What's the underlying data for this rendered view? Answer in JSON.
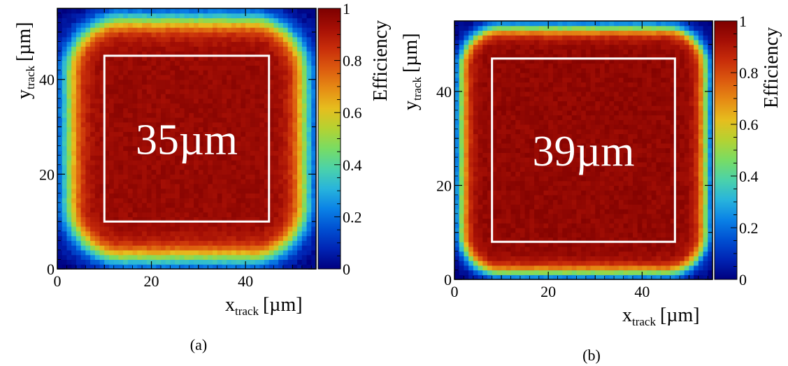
{
  "figure": {
    "panels": [
      {
        "caption": "(a)",
        "annotation": "35µm",
        "xlabel": "x",
        "xlabel_sub": "track",
        "xunit": "[µm]",
        "ylabel": "y",
        "ylabel_sub": "track",
        "yunit": "[µm]",
        "colorbar_label": "Efficiency"
      },
      {
        "caption": "(b)",
        "annotation": "39µm",
        "xlabel": "x",
        "xlabel_sub": "track",
        "xunit": "[µm]",
        "ylabel": "y",
        "ylabel_sub": "track",
        "yunit": "[µm]",
        "colorbar_label": "Efficiency"
      }
    ]
  },
  "chart_data": [
    {
      "type": "heatmap",
      "title": "",
      "xlabel": "x_track [µm]",
      "ylabel": "y_track [µm]",
      "xlim": [
        0,
        55
      ],
      "ylim": [
        0,
        55
      ],
      "x_ticks": [
        0,
        20,
        40
      ],
      "y_ticks": [
        0,
        20,
        40
      ],
      "colorbar": {
        "label": "Efficiency",
        "range": [
          0,
          1
        ],
        "ticks": [
          0,
          0.2,
          0.4,
          0.6,
          0.8,
          1
        ]
      },
      "pitch_um": 55,
      "bins": 55,
      "fiducial_square": {
        "x": [
          10,
          45
        ],
        "y": [
          10,
          45
        ],
        "label": "35µm"
      },
      "efficiency_model": {
        "plateau": 0.95,
        "corner_radius_um": 14,
        "edge_width_um": 4
      }
    },
    {
      "type": "heatmap",
      "title": "",
      "xlabel": "x_track [µm]",
      "ylabel": "y_track [µm]",
      "xlim": [
        0,
        55
      ],
      "ylim": [
        0,
        55
      ],
      "x_ticks": [
        0,
        20,
        40
      ],
      "y_ticks": [
        0,
        20,
        40
      ],
      "colorbar": {
        "label": "Efficiency",
        "range": [
          0,
          1
        ],
        "ticks": [
          0,
          0.2,
          0.4,
          0.6,
          0.8,
          1
        ]
      },
      "pitch_um": 55,
      "bins": 55,
      "fiducial_square": {
        "x": [
          8,
          47
        ],
        "y": [
          8,
          47
        ],
        "label": "39µm"
      },
      "efficiency_model": {
        "plateau": 0.96,
        "corner_radius_um": 10,
        "edge_width_um": 2.5
      }
    }
  ],
  "palette": [
    "#00007f",
    "#0024b4",
    "#0050d2",
    "#0a82e6",
    "#28b4dc",
    "#4bd2aa",
    "#78dc64",
    "#b4d232",
    "#e6be1e",
    "#e68c14",
    "#dc5a0f",
    "#c82d0a",
    "#a50f05",
    "#7d0000"
  ]
}
